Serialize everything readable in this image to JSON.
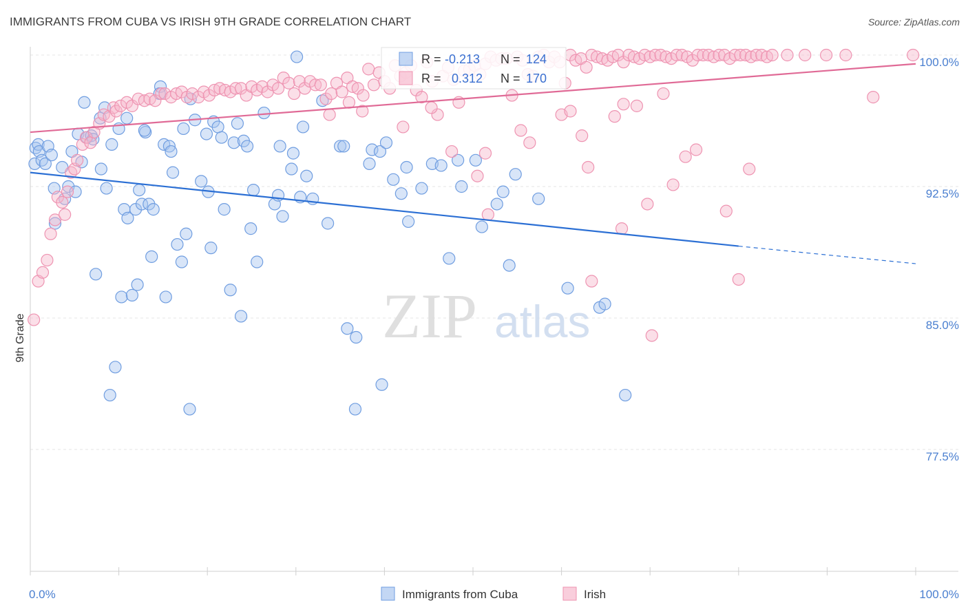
{
  "title": "IMMIGRANTS FROM CUBA VS IRISH 9TH GRADE CORRELATION CHART",
  "source": "Source: ZipAtlas.com",
  "watermark": {
    "zip": "ZIP",
    "atlas": "atlas"
  },
  "colors": {
    "cuba_fill": "#a9c6f0",
    "cuba_stroke": "#6f9de0",
    "cuba_line": "#2b6fd4",
    "irish_fill": "#f6b9cd",
    "irish_stroke": "#ee93b1",
    "irish_line": "#e06a96",
    "tick": "#4a7fd0",
    "grid": "#e6e6e6"
  },
  "stats_box": {
    "rows": [
      {
        "r_label": "R =",
        "r_value": "-0.213",
        "n_label": "N =",
        "n_value": "124"
      },
      {
        "r_label": "R =",
        "r_value": "0.312",
        "n_label": "N =",
        "n_value": "170"
      }
    ]
  },
  "chart_data": {
    "type": "scatter",
    "title": "IMMIGRANTS FROM CUBA VS IRISH 9TH GRADE CORRELATION CHART",
    "xlabel": "",
    "ylabel": "9th Grade",
    "xlim": [
      0,
      100
    ],
    "ylim": [
      70,
      100.8
    ],
    "x_tick_labels": [
      "0.0%",
      "100.0%"
    ],
    "y_ticks": [
      77.5,
      85.0,
      92.5,
      100.0
    ],
    "y_tick_labels": [
      "77.5%",
      "85.0%",
      "92.5%",
      "100.0%"
    ],
    "grid": true,
    "legend_position": "bottom-center",
    "series": [
      {
        "name": "Immigrants from Cuba",
        "trend": {
          "x0": 0,
          "y0": 93.3,
          "x1": 80,
          "y1": 89.1,
          "dash_to_x": 100,
          "dash_to_y": 88.1
        },
        "points": [
          [
            0.5,
            93.8
          ],
          [
            0.6,
            94.7
          ],
          [
            0.9,
            94.9
          ],
          [
            1.0,
            94.5
          ],
          [
            1.3,
            94.0
          ],
          [
            1.7,
            93.8
          ],
          [
            2.0,
            94.8
          ],
          [
            2.4,
            94.3
          ],
          [
            2.7,
            92.4
          ],
          [
            2.8,
            90.4
          ],
          [
            3.6,
            93.6
          ],
          [
            3.9,
            91.8
          ],
          [
            4.3,
            92.5
          ],
          [
            4.7,
            94.5
          ],
          [
            5.1,
            92.2
          ],
          [
            5.4,
            95.5
          ],
          [
            5.8,
            93.9
          ],
          [
            6.1,
            97.3
          ],
          [
            6.4,
            95.3
          ],
          [
            6.9,
            95.4
          ],
          [
            7.4,
            87.5
          ],
          [
            7.9,
            96.4
          ],
          [
            8.0,
            93.5
          ],
          [
            8.4,
            97.0
          ],
          [
            8.6,
            92.4
          ],
          [
            9.0,
            80.6
          ],
          [
            9.2,
            94.9
          ],
          [
            9.6,
            82.2
          ],
          [
            10.0,
            95.8
          ],
          [
            10.3,
            86.2
          ],
          [
            10.6,
            91.2
          ],
          [
            10.9,
            96.4
          ],
          [
            11.0,
            90.7
          ],
          [
            11.5,
            86.3
          ],
          [
            11.9,
            91.2
          ],
          [
            12.1,
            86.9
          ],
          [
            12.3,
            92.3
          ],
          [
            12.6,
            91.5
          ],
          [
            13.0,
            95.6
          ],
          [
            13.4,
            91.5
          ],
          [
            13.7,
            88.5
          ],
          [
            13.9,
            91.2
          ],
          [
            14.7,
            98.2
          ],
          [
            15.1,
            94.9
          ],
          [
            15.3,
            86.2
          ],
          [
            15.7,
            94.8
          ],
          [
            15.9,
            94.5
          ],
          [
            16.1,
            93.3
          ],
          [
            16.6,
            89.2
          ],
          [
            17.1,
            88.2
          ],
          [
            17.3,
            95.8
          ],
          [
            17.6,
            89.8
          ],
          [
            18.1,
            97.5
          ],
          [
            18.6,
            96.3
          ],
          [
            19.3,
            92.8
          ],
          [
            19.9,
            95.5
          ],
          [
            20.1,
            92.2
          ],
          [
            20.4,
            89.0
          ],
          [
            20.7,
            96.2
          ],
          [
            21.2,
            95.9
          ],
          [
            21.6,
            95.3
          ],
          [
            21.9,
            91.2
          ],
          [
            22.6,
            86.6
          ],
          [
            23.0,
            95.0
          ],
          [
            23.4,
            96.1
          ],
          [
            23.8,
            85.1
          ],
          [
            24.1,
            95.1
          ],
          [
            24.5,
            94.8
          ],
          [
            24.9,
            90.1
          ],
          [
            25.2,
            92.3
          ],
          [
            25.6,
            88.2
          ],
          [
            26.4,
            96.7
          ],
          [
            27.6,
            91.5
          ],
          [
            28.0,
            92.0
          ],
          [
            28.2,
            94.8
          ],
          [
            28.5,
            90.8
          ],
          [
            29.5,
            93.5
          ],
          [
            29.7,
            94.4
          ],
          [
            30.1,
            99.9
          ],
          [
            30.5,
            91.9
          ],
          [
            30.8,
            95.9
          ],
          [
            31.2,
            93.1
          ],
          [
            31.9,
            91.8
          ],
          [
            33.0,
            97.4
          ],
          [
            33.6,
            90.4
          ],
          [
            35.0,
            94.8
          ],
          [
            35.4,
            94.8
          ],
          [
            35.8,
            84.4
          ],
          [
            36.8,
            83.9
          ],
          [
            38.3,
            93.8
          ],
          [
            38.6,
            94.6
          ],
          [
            39.5,
            94.5
          ],
          [
            39.7,
            81.2
          ],
          [
            40.2,
            95.0
          ],
          [
            41.0,
            92.9
          ],
          [
            41.9,
            92.1
          ],
          [
            42.5,
            93.6
          ],
          [
            42.7,
            90.5
          ],
          [
            44.2,
            92.4
          ],
          [
            45.4,
            93.8
          ],
          [
            46.4,
            93.7
          ],
          [
            47.3,
            88.4
          ],
          [
            48.3,
            94.0
          ],
          [
            48.7,
            92.5
          ],
          [
            50.3,
            94.0
          ],
          [
            51.0,
            90.2
          ],
          [
            52.7,
            91.5
          ],
          [
            53.4,
            92.2
          ],
          [
            54.1,
            88.0
          ],
          [
            54.8,
            93.2
          ],
          [
            57.4,
            91.8
          ],
          [
            60.7,
            86.7
          ],
          [
            64.3,
            85.6
          ],
          [
            64.9,
            85.8
          ],
          [
            67.2,
            80.6
          ],
          [
            36.7,
            79.8
          ],
          [
            18.0,
            79.8
          ],
          [
            14.6,
            97.8
          ],
          [
            12.9,
            95.7
          ],
          [
            7.1,
            95.2
          ]
        ]
      },
      {
        "name": "Irish",
        "trend": {
          "x0": 0,
          "y0": 95.6,
          "x1": 100,
          "y1": 99.5
        },
        "points": [
          [
            0.4,
            84.9
          ],
          [
            0.9,
            87.1
          ],
          [
            1.4,
            87.6
          ],
          [
            1.9,
            88.3
          ],
          [
            2.3,
            89.8
          ],
          [
            2.8,
            90.6
          ],
          [
            3.1,
            91.9
          ],
          [
            3.6,
            91.6
          ],
          [
            3.9,
            90.9
          ],
          [
            4.2,
            92.2
          ],
          [
            4.6,
            93.3
          ],
          [
            5.0,
            93.5
          ],
          [
            5.3,
            94.0
          ],
          [
            5.9,
            94.9
          ],
          [
            6.3,
            95.3
          ],
          [
            6.8,
            95.0
          ],
          [
            7.2,
            95.6
          ],
          [
            7.8,
            96.1
          ],
          [
            8.3,
            96.6
          ],
          [
            8.9,
            96.5
          ],
          [
            9.4,
            97.0
          ],
          [
            9.7,
            96.8
          ],
          [
            10.2,
            97.1
          ],
          [
            10.9,
            97.3
          ],
          [
            11.5,
            97.1
          ],
          [
            12.2,
            97.5
          ],
          [
            12.9,
            97.4
          ],
          [
            13.5,
            97.5
          ],
          [
            14.1,
            97.4
          ],
          [
            14.8,
            97.8
          ],
          [
            15.2,
            97.8
          ],
          [
            15.9,
            97.6
          ],
          [
            16.5,
            97.8
          ],
          [
            17.1,
            97.9
          ],
          [
            17.7,
            97.6
          ],
          [
            18.3,
            97.8
          ],
          [
            19.0,
            97.6
          ],
          [
            19.6,
            97.9
          ],
          [
            20.2,
            97.7
          ],
          [
            20.8,
            98.0
          ],
          [
            21.4,
            98.1
          ],
          [
            22.0,
            98.0
          ],
          [
            22.6,
            97.9
          ],
          [
            23.2,
            98.1
          ],
          [
            23.8,
            98.1
          ],
          [
            24.4,
            97.7
          ],
          [
            25.0,
            98.2
          ],
          [
            25.6,
            98.0
          ],
          [
            26.2,
            98.2
          ],
          [
            26.8,
            97.9
          ],
          [
            27.4,
            98.3
          ],
          [
            28.0,
            98.1
          ],
          [
            28.6,
            98.7
          ],
          [
            29.2,
            98.4
          ],
          [
            29.8,
            97.8
          ],
          [
            30.4,
            98.5
          ],
          [
            31.0,
            98.1
          ],
          [
            31.6,
            98.5
          ],
          [
            32.2,
            98.3
          ],
          [
            32.8,
            98.3
          ],
          [
            33.4,
            97.5
          ],
          [
            34.0,
            97.8
          ],
          [
            34.6,
            98.4
          ],
          [
            35.2,
            97.9
          ],
          [
            35.8,
            98.7
          ],
          [
            36.4,
            98.2
          ],
          [
            37.0,
            98.1
          ],
          [
            37.6,
            97.7
          ],
          [
            38.2,
            99.2
          ],
          [
            38.8,
            98.3
          ],
          [
            39.4,
            99.0
          ],
          [
            40.0,
            98.5
          ],
          [
            40.6,
            98.1
          ],
          [
            41.2,
            99.4
          ],
          [
            41.8,
            98.8
          ],
          [
            42.4,
            99.0
          ],
          [
            43.0,
            99.4
          ],
          [
            43.6,
            98.0
          ],
          [
            44.2,
            97.6
          ],
          [
            44.8,
            99.6
          ],
          [
            45.4,
            98.5
          ],
          [
            46.0,
            96.6
          ],
          [
            46.6,
            98.8
          ],
          [
            47.2,
            99.3
          ],
          [
            47.8,
            98.6
          ],
          [
            48.4,
            97.3
          ],
          [
            49.0,
            99.1
          ],
          [
            49.6,
            99.2
          ],
          [
            50.2,
            99.4
          ],
          [
            50.8,
            98.9
          ],
          [
            51.4,
            99.5
          ],
          [
            52.0,
            99.9
          ],
          [
            52.6,
            99.7
          ],
          [
            53.2,
            99.8
          ],
          [
            53.8,
            99.8
          ],
          [
            54.4,
            97.7
          ],
          [
            55.0,
            99.9
          ],
          [
            55.6,
            99.7
          ],
          [
            56.2,
            98.9
          ],
          [
            56.8,
            98.8
          ],
          [
            57.4,
            99.9
          ],
          [
            58.0,
            100.0
          ],
          [
            58.6,
            99.6
          ],
          [
            59.2,
            99.9
          ],
          [
            59.8,
            99.6
          ],
          [
            60.4,
            98.4
          ],
          [
            61.0,
            100.0
          ],
          [
            61.6,
            99.7
          ],
          [
            62.2,
            99.8
          ],
          [
            62.8,
            99.3
          ],
          [
            63.4,
            100.0
          ],
          [
            64.0,
            99.9
          ],
          [
            64.6,
            99.8
          ],
          [
            65.2,
            99.7
          ],
          [
            65.8,
            99.9
          ],
          [
            66.4,
            100.0
          ],
          [
            67.0,
            99.6
          ],
          [
            67.6,
            100.0
          ],
          [
            68.2,
            99.9
          ],
          [
            68.8,
            99.8
          ],
          [
            69.4,
            100.0
          ],
          [
            70.0,
            99.9
          ],
          [
            70.6,
            100.0
          ],
          [
            71.2,
            100.0
          ],
          [
            71.8,
            99.9
          ],
          [
            72.4,
            99.8
          ],
          [
            73.0,
            100.0
          ],
          [
            73.6,
            100.0
          ],
          [
            74.2,
            99.9
          ],
          [
            74.8,
            99.7
          ],
          [
            75.4,
            100.0
          ],
          [
            76.0,
            100.0
          ],
          [
            76.6,
            100.0
          ],
          [
            77.2,
            99.9
          ],
          [
            77.8,
            100.0
          ],
          [
            78.4,
            100.0
          ],
          [
            79.0,
            99.8
          ],
          [
            79.6,
            100.0
          ],
          [
            80.2,
            100.0
          ],
          [
            80.8,
            100.0
          ],
          [
            81.4,
            99.9
          ],
          [
            82.0,
            100.0
          ],
          [
            82.6,
            100.0
          ],
          [
            83.2,
            99.9
          ],
          [
            83.8,
            100.0
          ],
          [
            85.5,
            100.0
          ],
          [
            87.5,
            100.0
          ],
          [
            89.9,
            100.0
          ],
          [
            92.1,
            100.0
          ],
          [
            99.7,
            100.0
          ],
          [
            51.4,
            94.4
          ],
          [
            55.4,
            95.7
          ],
          [
            56.4,
            95.0
          ],
          [
            60.0,
            96.6
          ],
          [
            61.0,
            96.8
          ],
          [
            62.3,
            95.4
          ],
          [
            63.0,
            93.6
          ],
          [
            66.0,
            96.5
          ],
          [
            67.0,
            97.2
          ],
          [
            68.5,
            97.1
          ],
          [
            69.7,
            91.5
          ],
          [
            70.2,
            84.0
          ],
          [
            71.5,
            97.8
          ],
          [
            72.6,
            92.6
          ],
          [
            74.0,
            94.2
          ],
          [
            75.2,
            94.6
          ],
          [
            78.6,
            91.1
          ],
          [
            80.0,
            87.2
          ],
          [
            81.2,
            93.5
          ],
          [
            95.2,
            97.6
          ],
          [
            50.5,
            93.1
          ],
          [
            51.7,
            90.9
          ],
          [
            47.6,
            94.5
          ],
          [
            42.1,
            95.9
          ],
          [
            37.5,
            96.8
          ],
          [
            33.8,
            96.6
          ],
          [
            63.4,
            87.1
          ],
          [
            66.8,
            90.1
          ],
          [
            36.0,
            97.3
          ],
          [
            45.3,
            97.0
          ]
        ]
      }
    ]
  },
  "legend": {
    "items": [
      {
        "label": "Immigrants from Cuba"
      },
      {
        "label": "Irish"
      }
    ]
  }
}
